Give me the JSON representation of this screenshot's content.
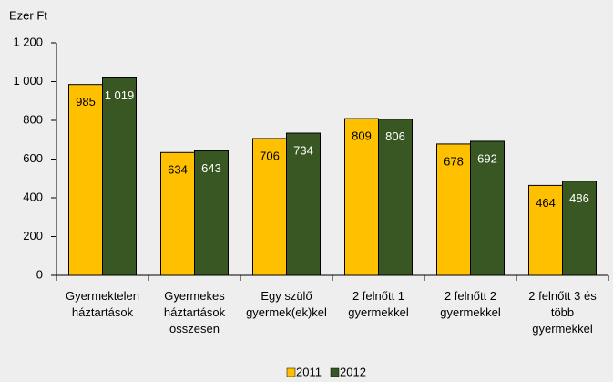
{
  "chart_data": {
    "type": "bar",
    "y_label": "Ezer Ft",
    "categories": [
      [
        "Gyermektelen",
        "háztartások"
      ],
      [
        "Gyermekes",
        "háztartások",
        "összesen"
      ],
      [
        "Egy szülő",
        "gyermek(ek)kel"
      ],
      [
        "2 felnőtt 1",
        "gyermekkel"
      ],
      [
        "2 felnőtt 2",
        "gyermekkel"
      ],
      [
        "2 felnőtt 3 és",
        "több",
        "gyermekkel"
      ]
    ],
    "series": [
      {
        "name": "2011",
        "color": "#ffc000",
        "values": [
          985,
          634,
          706,
          809,
          678,
          464
        ],
        "value_labels": [
          "985",
          "634",
          "706",
          "809",
          "678",
          "464"
        ]
      },
      {
        "name": "2012",
        "color": "#385723",
        "values": [
          1019,
          643,
          734,
          806,
          692,
          486
        ],
        "value_labels": [
          "1 019",
          "643",
          "734",
          "806",
          "692",
          "486"
        ]
      }
    ],
    "ylim": [
      0,
      1200
    ],
    "yticks": [
      0,
      200,
      400,
      600,
      800,
      {
        "value": 1000,
        "label": "1 000"
      },
      {
        "value": 1200,
        "label": "1 200"
      }
    ],
    "legend": "bottom"
  }
}
